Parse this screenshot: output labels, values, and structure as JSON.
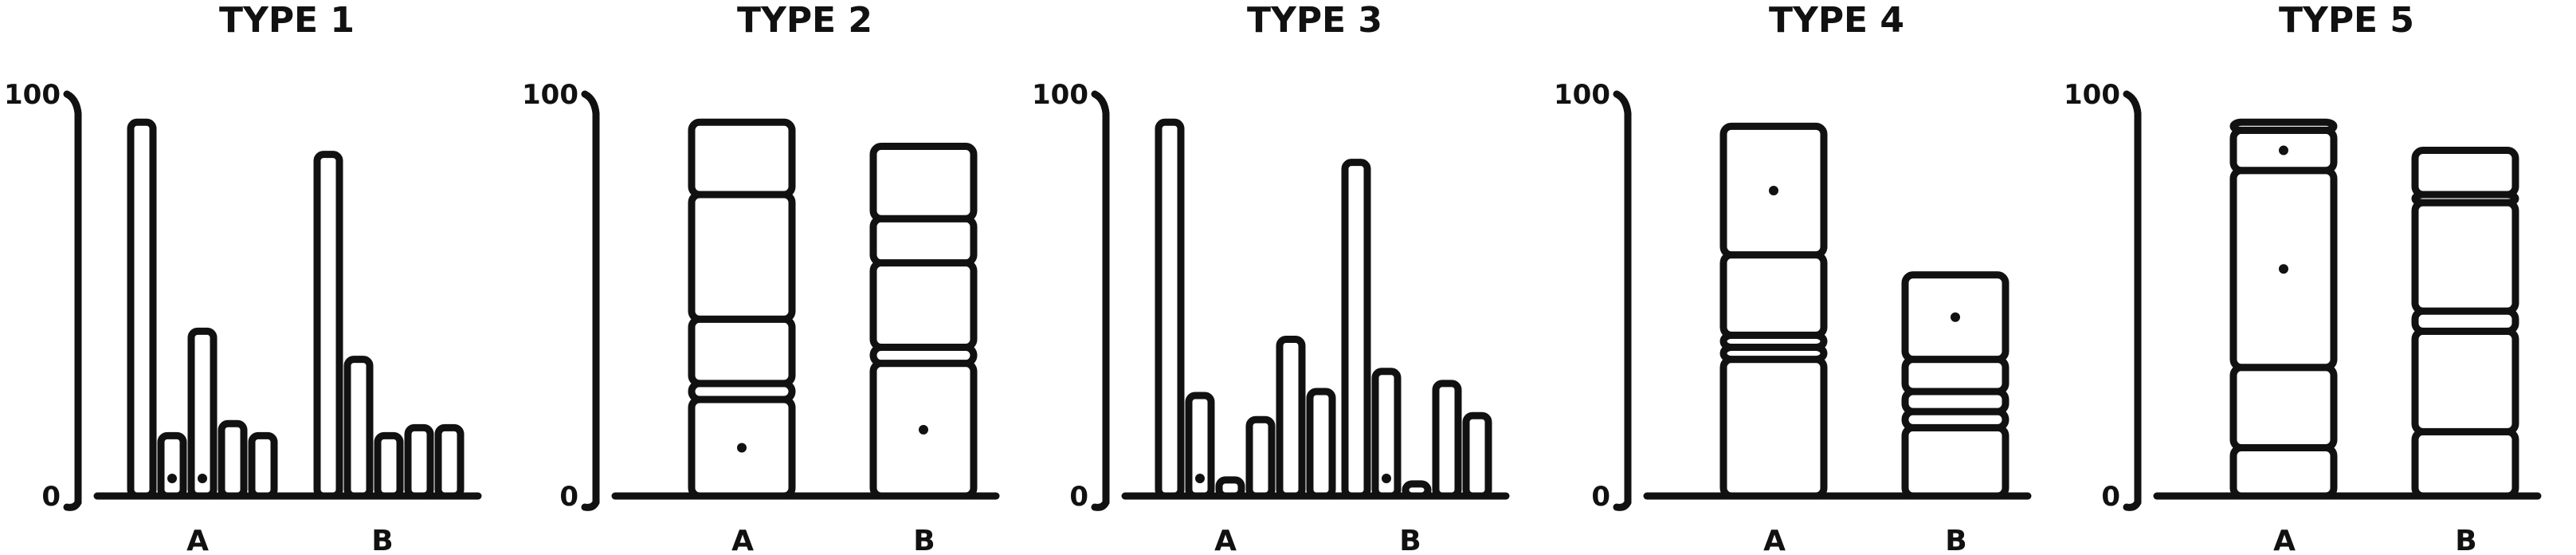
{
  "chart_data": [
    {
      "type": "bar",
      "title": "TYPE 1",
      "yticks": [
        "0",
        "100"
      ],
      "ylim": [
        0,
        100
      ],
      "categories": [
        "A",
        "B"
      ],
      "bars": [
        {
          "category": "A",
          "values": [
            93,
            15,
            41,
            18,
            15
          ],
          "dots": [
            1,
            2
          ]
        },
        {
          "category": "B",
          "values": [
            85,
            34,
            15,
            17,
            17
          ],
          "dots": []
        }
      ]
    },
    {
      "type": "bar",
      "title": "TYPE 2",
      "yticks": [
        "0",
        "100"
      ],
      "ylim": [
        0,
        100
      ],
      "categories": [
        "A",
        "B"
      ],
      "stacks": [
        {
          "category": "A",
          "segments": [
            24,
            4,
            16,
            31,
            18
          ],
          "dots": [
            0
          ]
        },
        {
          "category": "B",
          "segments": [
            33,
            4,
            21,
            11,
            18
          ],
          "dots": [
            0
          ]
        }
      ]
    },
    {
      "type": "bar",
      "title": "TYPE 3",
      "yticks": [
        "0",
        "100"
      ],
      "ylim": [
        0,
        100
      ],
      "categories": [
        "A",
        "B"
      ],
      "bars": [
        {
          "category": "A",
          "values": [
            93,
            25,
            4,
            19,
            39,
            26
          ],
          "dots": [
            1
          ]
        },
        {
          "category": "B",
          "values": [
            83,
            31,
            3,
            28,
            20
          ],
          "dots": [
            1
          ]
        }
      ]
    },
    {
      "type": "bar",
      "title": "TYPE 4",
      "yticks": [
        "0",
        "100"
      ],
      "ylim": [
        0,
        100
      ],
      "categories": [
        "A",
        "B"
      ],
      "stacks": [
        {
          "category": "A",
          "segments": [
            34,
            3,
            3,
            20,
            32
          ],
          "dots": [
            4
          ]
        },
        {
          "category": "B",
          "segments": [
            17,
            4,
            5,
            8,
            21
          ],
          "dots": [
            4
          ]
        }
      ]
    },
    {
      "type": "bar",
      "title": "TYPE 5",
      "yticks": [
        "0",
        "100"
      ],
      "ylim": [
        0,
        100
      ],
      "categories": [
        "A",
        "B"
      ],
      "stacks": [
        {
          "category": "A",
          "segments": [
            12,
            20,
            49,
            10,
            2
          ],
          "dots": [
            2,
            3
          ]
        },
        {
          "category": "B",
          "segments": [
            16,
            25,
            5,
            27,
            2,
            11
          ],
          "dots": []
        }
      ]
    }
  ]
}
